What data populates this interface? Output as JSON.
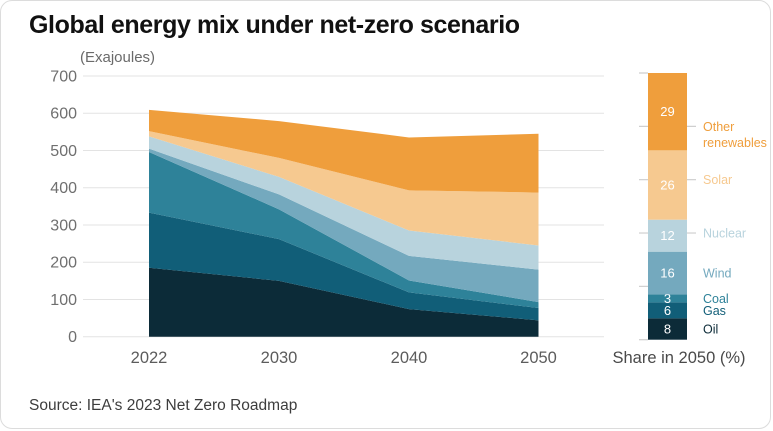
{
  "title": "Global energy mix under net-zero scenario",
  "unit_label": "(Exajoules)",
  "source": "Source: IEA's 2023 Net Zero Roadmap",
  "colors": {
    "oil": "#0C2B38",
    "gas": "#115E78",
    "coal": "#2E8299",
    "wind": "#74A9BE",
    "nuclear": "#B8D3DD",
    "solar": "#F6C990",
    "other_renewables": "#EF9E3C",
    "gridline": "#E3E3E3",
    "tick": "#CFCFCF",
    "axis_text": "#6F6F6F",
    "title_text": "#111111",
    "segment_number_text": "#FFFFFF"
  },
  "chart_data": {
    "type": "area",
    "stacked": true,
    "title": "Global energy mix under net-zero scenario",
    "ylabel": "Exajoules",
    "unit_label": "(Exajoules)",
    "ylim": [
      0,
      700
    ],
    "y_ticks": [
      0,
      100,
      200,
      300,
      400,
      500,
      600,
      700
    ],
    "grid": true,
    "categories": [
      "2022",
      "2030",
      "2040",
      "2050"
    ],
    "stack_order_note": "series listed bottom to top of stack",
    "series": [
      {
        "name": "Oil",
        "label": "Oil",
        "color": "#0C2B38",
        "values": [
          185,
          150,
          74,
          44
        ],
        "share_2050_pct": 8
      },
      {
        "name": "Gas",
        "label": "Gas",
        "color": "#115E78",
        "values": [
          148,
          112,
          45,
          33
        ],
        "share_2050_pct": 6
      },
      {
        "name": "Coal",
        "label": "Coal",
        "color": "#2E8299",
        "values": [
          163,
          80,
          32,
          16
        ],
        "share_2050_pct": 3
      },
      {
        "name": "Wind",
        "label": "Wind",
        "color": "#74A9BE",
        "values": [
          9,
          40,
          66,
          87
        ],
        "share_2050_pct": 16
      },
      {
        "name": "Nuclear",
        "label": "Nuclear",
        "color": "#B8D3DD",
        "values": [
          33,
          47,
          68,
          65
        ],
        "share_2050_pct": 12,
        "label_tick_frac": 0.4
      },
      {
        "name": "Solar",
        "label": "Solar",
        "color": "#F6C990",
        "values": [
          14,
          51,
          108,
          142
        ],
        "share_2050_pct": 26,
        "label_tick_frac": 0.6
      },
      {
        "name": "Other renewables",
        "label": "Other\nrenewables",
        "color": "#EF9E3C",
        "values": [
          57,
          99,
          142,
          158
        ],
        "share_2050_pct": 29,
        "label_tick_frac": 0.8
      }
    ],
    "totals": [
      609,
      579,
      535,
      545
    ],
    "legend_position": "right",
    "legend_type": "stacked-bar",
    "legend_note": "Share in 2050 (%)",
    "source": "Source: IEA's 2023 Net Zero Roadmap"
  }
}
